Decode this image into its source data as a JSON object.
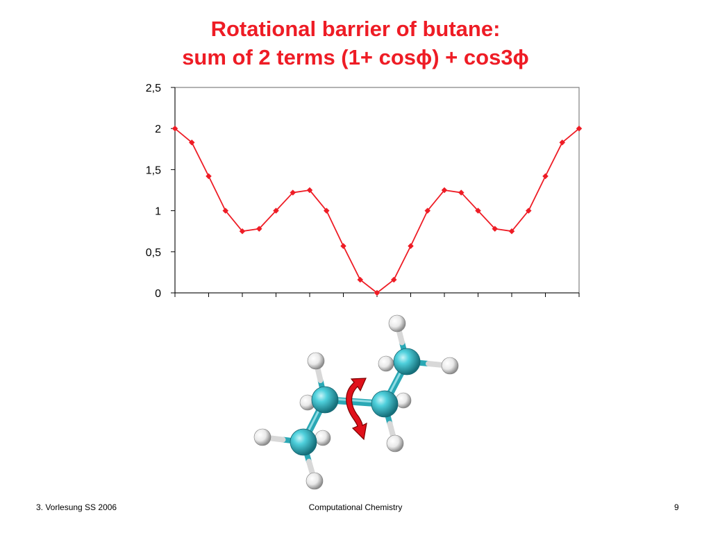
{
  "slide": {
    "title_line1": "Rotational barrier of butane:",
    "title_line2": "sum of 2 terms  (1+ cosϕ) + cos3ϕ",
    "footer_left": "3. Vorlesung SS 2006",
    "footer_center": "Computational Chemistry",
    "footer_right": "9"
  },
  "chart_data": {
    "type": "line",
    "title": "Rotational barrier of butane: sum of 2 terms  (1+ cosϕ) + cos3ϕ",
    "xlabel": "",
    "ylabel": "",
    "x": [
      0,
      15,
      30,
      45,
      60,
      75,
      90,
      105,
      120,
      135,
      150,
      165,
      180,
      195,
      210,
      225,
      240,
      255,
      270,
      285,
      300,
      315,
      330,
      345,
      360
    ],
    "series": [
      {
        "name": "",
        "color": "#ee1c25",
        "marker": "diamond",
        "values": [
          2,
          1.83,
          1.42,
          1,
          0.75,
          0.78,
          1,
          1.22,
          1.25,
          1,
          0.57,
          0.16,
          0,
          0.16,
          0.57,
          1,
          1.25,
          1.22,
          1,
          0.78,
          0.75,
          1,
          1.42,
          1.83,
          2
        ]
      }
    ],
    "ylim": [
      0,
      2.5
    ],
    "yticks": [
      "0",
      "0,5",
      "1",
      "1,5",
      "2",
      "2,5"
    ],
    "grid": false,
    "legend": "none"
  },
  "illustration": {
    "molecule": "butane ball-and-stick model",
    "arrow_icon": "rotation-arrow-icon",
    "carbon_color": "#36b5c2",
    "hydrogen_color": "#f2f2f2",
    "arrow_color": "#e0101a"
  }
}
